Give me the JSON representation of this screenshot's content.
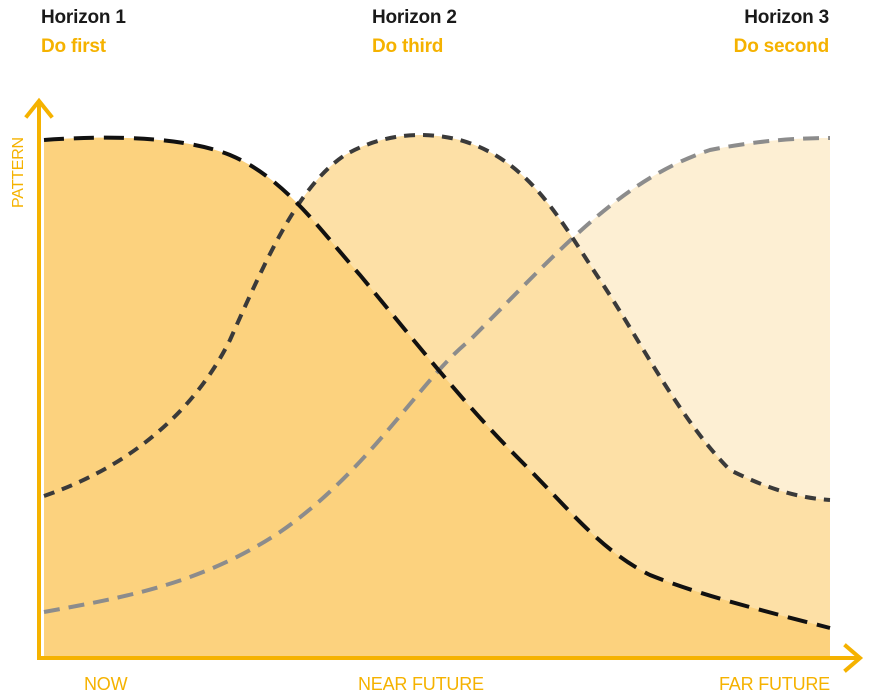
{
  "horizons": [
    {
      "title": "Horizon 1",
      "action": "Do first"
    },
    {
      "title": "Horizon 2",
      "action": "Do third"
    },
    {
      "title": "Horizon 3",
      "action": "Do second"
    }
  ],
  "axes": {
    "y_label": "PATTERN",
    "x_ticks": [
      "NOW",
      "NEAR FUTURE",
      "FAR FUTURE"
    ]
  },
  "colors": {
    "accent": "#f5b200",
    "horizon1_fill": "#fcd27e",
    "horizon2_fill": "#fde0a6",
    "horizon3_fill": "#fdefd3",
    "horizon1_line": "#111111",
    "horizon2_line": "#3a3a3a",
    "horizon3_line": "#8c8c8c"
  }
}
